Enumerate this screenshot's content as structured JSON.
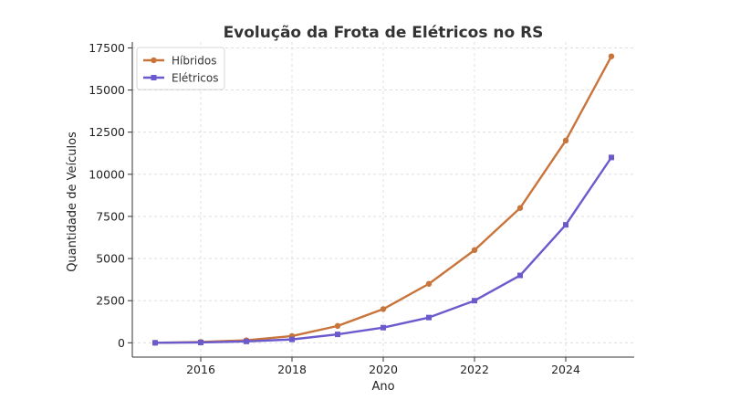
{
  "chart_data": {
    "type": "line",
    "title": "Evolução da Frota de Elétricos no RS",
    "xlabel": "Ano",
    "ylabel": "Quantidade de Veículos",
    "x": [
      2015,
      2016,
      2017,
      2018,
      2019,
      2020,
      2021,
      2022,
      2023,
      2024,
      2025
    ],
    "series": [
      {
        "name": "Híbridos",
        "color": "#c8743a",
        "marker": "circle",
        "values": [
          0,
          50,
          150,
          400,
          1000,
          2000,
          3500,
          5500,
          8000,
          12000,
          17000
        ]
      },
      {
        "name": "Elétricos",
        "color": "#6a5acd",
        "marker": "square",
        "values": [
          0,
          20,
          80,
          200,
          500,
          900,
          1500,
          2500,
          4000,
          7000,
          11000
        ]
      }
    ],
    "xticks": [
      "2016",
      "2018",
      "2020",
      "2022",
      "2024"
    ],
    "yticks": [
      "0",
      "2500",
      "5000",
      "7500",
      "10000",
      "12500",
      "15000",
      "17500"
    ],
    "xlim": [
      2014.5,
      2025.5
    ],
    "ylim": [
      -850,
      17850
    ],
    "grid": true,
    "legend_position": "top-left"
  }
}
